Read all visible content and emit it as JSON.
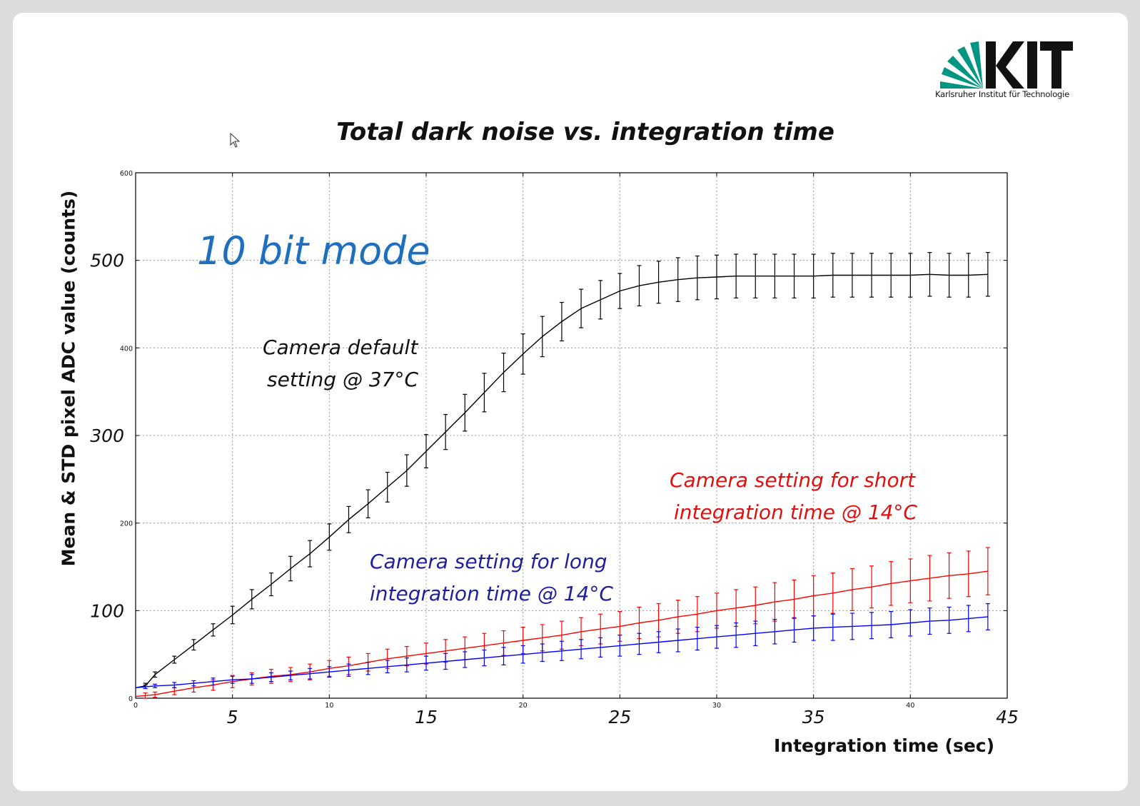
{
  "logo": {
    "brand_text": "KIT",
    "subtitle": "Karlsruher Institut für Technologie",
    "colors": {
      "fan": "#009682",
      "letters": "#111111"
    }
  },
  "annotations": {
    "mode": "10 bit mode",
    "default_line1": "Camera default",
    "default_line2": "setting @ 37°C",
    "short_line1": "Camera setting for short",
    "short_line2": "integration time @ 14°C",
    "long_line1": "Camera setting for long",
    "long_line2": "integration time @ 14°C"
  },
  "chart_data": {
    "type": "line",
    "title": "Total dark noise vs. integration time",
    "xlabel": "Integration time (sec)",
    "ylabel": "Mean & STD pixel ADC value (counts)",
    "xlim": [
      0,
      45
    ],
    "ylim": [
      0,
      600
    ],
    "grid": true,
    "x_ticks_small": [
      "0",
      "10",
      "20",
      "30",
      "40"
    ],
    "x_ticks_large": [
      "5",
      "15",
      "25",
      "35",
      "45"
    ],
    "y_ticks_small": [
      "0",
      "200",
      "400",
      "600"
    ],
    "y_ticks_large": [
      "100",
      "300",
      "500"
    ],
    "x": [
      0,
      0.5,
      1,
      2,
      3,
      4,
      5,
      6,
      7,
      8,
      9,
      10,
      11,
      12,
      13,
      14,
      15,
      16,
      17,
      18,
      19,
      20,
      21,
      22,
      23,
      24,
      25,
      26,
      27,
      28,
      29,
      30,
      31,
      32,
      33,
      34,
      35,
      36,
      37,
      38,
      39,
      40,
      41,
      42,
      43,
      44
    ],
    "series": [
      {
        "color": "#000000",
        "values": [
          12,
          14,
          27,
          44,
          61,
          78,
          95,
          113,
          130,
          148,
          165,
          184,
          204,
          222,
          241,
          260,
          282,
          304,
          326,
          349,
          372,
          393,
          413,
          430,
          445,
          455,
          465,
          471,
          475,
          478,
          480,
          481,
          482,
          482,
          482,
          482,
          482,
          483,
          483,
          483,
          483,
          483,
          484,
          483,
          483,
          484
        ],
        "errors": [
          3,
          3,
          3,
          4,
          6,
          7,
          10,
          11,
          13,
          14,
          15,
          15,
          15,
          16,
          17,
          18,
          19,
          20,
          21,
          22,
          22,
          23,
          23,
          22,
          22,
          22,
          20,
          23,
          24,
          25,
          25,
          25,
          25,
          25,
          25,
          25,
          25,
          25,
          25,
          25,
          25,
          25,
          25,
          25,
          25,
          25
        ]
      },
      {
        "color": "#ff0000",
        "values": [
          2,
          3,
          4,
          8,
          12,
          15,
          19,
          22,
          25,
          27,
          30,
          34,
          37,
          41,
          45,
          48,
          51,
          54,
          57,
          60,
          63,
          66,
          69,
          72,
          76,
          79,
          82,
          86,
          89,
          93,
          96,
          100,
          103,
          106,
          110,
          113,
          117,
          120,
          124,
          127,
          131,
          134,
          137,
          140,
          142,
          145
        ],
        "errors": [
          3,
          3,
          3,
          4,
          5,
          6,
          7,
          7,
          8,
          8,
          9,
          9,
          10,
          10,
          11,
          11,
          12,
          13,
          13,
          14,
          14,
          15,
          15,
          16,
          16,
          17,
          17,
          18,
          19,
          19,
          20,
          20,
          21,
          21,
          22,
          22,
          23,
          23,
          24,
          24,
          25,
          25,
          26,
          26,
          26,
          27
        ]
      },
      {
        "color": "#0000ff",
        "values": [
          12,
          13,
          14,
          15,
          17,
          19,
          21,
          22,
          24,
          26,
          28,
          30,
          32,
          34,
          36,
          38,
          40,
          42,
          44,
          46,
          48,
          50,
          52,
          54,
          56,
          58,
          60,
          62,
          64,
          66,
          68,
          70,
          72,
          74,
          76,
          78,
          80,
          81,
          82,
          83,
          84,
          86,
          88,
          89,
          91,
          93
        ],
        "errors": [
          2,
          2,
          2,
          3,
          3,
          4,
          4,
          5,
          5,
          5,
          6,
          6,
          7,
          7,
          7,
          8,
          8,
          9,
          9,
          9,
          10,
          10,
          10,
          11,
          11,
          11,
          12,
          12,
          12,
          13,
          13,
          13,
          14,
          14,
          14,
          14,
          14,
          15,
          15,
          15,
          15,
          15,
          15,
          15,
          15,
          15
        ]
      }
    ]
  }
}
